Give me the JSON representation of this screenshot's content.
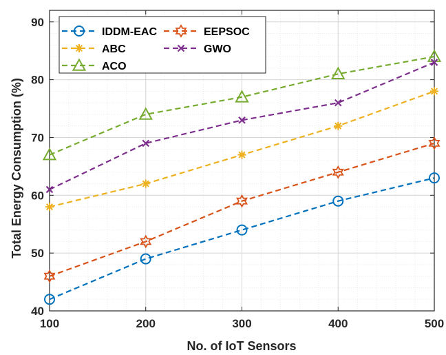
{
  "chart_data": {
    "type": "line",
    "xlabel": "No. of IoT Sensors",
    "ylabel": "Total Energy Consumption (%)",
    "x": [
      100,
      200,
      300,
      400,
      500
    ],
    "xticks": [
      "100",
      "200",
      "300",
      "400",
      "500"
    ],
    "yticks": [
      "40",
      "50",
      "60",
      "70",
      "80",
      "90"
    ],
    "xlim": [
      100,
      500
    ],
    "ylim": [
      40,
      92
    ],
    "grid": true,
    "minor_grid": true,
    "legend_position": "top-left",
    "series": [
      {
        "name": "IDDM-EAC",
        "values": [
          42,
          49,
          54,
          59,
          63
        ],
        "color": "#0072BD",
        "marker": "circle"
      },
      {
        "name": "ABC",
        "values": [
          58,
          62,
          67,
          72,
          78
        ],
        "color": "#EDB120",
        "marker": "asterisk"
      },
      {
        "name": "ACO",
        "values": [
          67,
          74,
          77,
          81,
          84
        ],
        "color": "#77AC30",
        "marker": "triangle"
      },
      {
        "name": "EEPSOC",
        "values": [
          46,
          52,
          59,
          64,
          69
        ],
        "color": "#D95319",
        "marker": "hexagram"
      },
      {
        "name": "GWO",
        "values": [
          61,
          69,
          73,
          76,
          83
        ],
        "color": "#7E2F8E",
        "marker": "cross"
      }
    ]
  }
}
